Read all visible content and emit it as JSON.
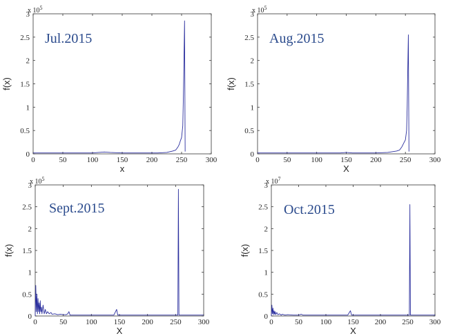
{
  "chart_data": [
    {
      "type": "line",
      "title": "Jul.2015",
      "xlabel": "x",
      "ylabel": "f(x)",
      "xlim": [
        0,
        300
      ],
      "ylim": [
        0,
        3
      ],
      "y_multiplier": "x 10",
      "y_exponent": "5",
      "x_ticks": [
        "0",
        "50",
        "100",
        "150",
        "200",
        "250",
        "300"
      ],
      "y_ticks": [
        "0",
        "0.5",
        "1",
        "1.5",
        "2",
        "2.5",
        "3"
      ],
      "series": [
        {
          "color": "#2b2f9e",
          "x": [
            0,
            20,
            40,
            60,
            80,
            100,
            110,
            120,
            130,
            150,
            170,
            190,
            210,
            225,
            235,
            240,
            244,
            246,
            248,
            250,
            252,
            253,
            254,
            255,
            256
          ],
          "y": [
            0.02,
            0.02,
            0.02,
            0.02,
            0.02,
            0.02,
            0.03,
            0.04,
            0.03,
            0.02,
            0.02,
            0.02,
            0.02,
            0.03,
            0.06,
            0.08,
            0.15,
            0.2,
            0.28,
            0.35,
            0.6,
            1.2,
            2.0,
            2.85,
            0.05
          ]
        }
      ]
    },
    {
      "type": "line",
      "title": "Aug.2015",
      "xlabel": "X",
      "ylabel": "f(x)",
      "xlim": [
        0,
        300
      ],
      "ylim": [
        0,
        3
      ],
      "y_multiplier": "x 10",
      "y_exponent": "5",
      "x_ticks": [
        "0",
        "50",
        "100",
        "150",
        "200",
        "250",
        "300"
      ],
      "y_ticks": [
        "0",
        "0.5",
        "1",
        "1.5",
        "2",
        "2.5",
        "3"
      ],
      "series": [
        {
          "color": "#2b2f9e",
          "x": [
            0,
            20,
            40,
            60,
            80,
            100,
            120,
            140,
            150,
            160,
            180,
            200,
            220,
            235,
            240,
            244,
            246,
            248,
            250,
            252,
            253,
            254,
            255,
            256
          ],
          "y": [
            0.02,
            0.02,
            0.02,
            0.02,
            0.02,
            0.02,
            0.02,
            0.02,
            0.03,
            0.02,
            0.02,
            0.02,
            0.03,
            0.06,
            0.08,
            0.15,
            0.2,
            0.25,
            0.3,
            0.5,
            1.0,
            1.8,
            2.55,
            0.05
          ]
        }
      ]
    },
    {
      "type": "line",
      "title": "Sept.2015",
      "xlabel": "X",
      "ylabel": "f(x)",
      "xlim": [
        0,
        300
      ],
      "ylim": [
        0,
        3
      ],
      "y_multiplier": "x 10",
      "y_exponent": "5",
      "x_ticks": [
        "0",
        "50",
        "100",
        "150",
        "200",
        "250",
        "300"
      ],
      "y_ticks": [
        "0",
        "0.5",
        "1",
        "1.5",
        "2",
        "2.5",
        "3"
      ],
      "series": [
        {
          "color": "#2b2f9e",
          "x": [
            0,
            1,
            2,
            3,
            4,
            5,
            6,
            7,
            8,
            9,
            10,
            11,
            12,
            14,
            16,
            18,
            20,
            22,
            25,
            28,
            30,
            35,
            40,
            45,
            50,
            55,
            58,
            60,
            62,
            70,
            80,
            90,
            100,
            110,
            120,
            130,
            140,
            145,
            147,
            150,
            160,
            180,
            200,
            220,
            240,
            250,
            252,
            253,
            254,
            255,
            256,
            258,
            270,
            300
          ],
          "y": [
            0.0,
            0.7,
            0.1,
            0.5,
            0.05,
            0.4,
            0.1,
            0.3,
            0.05,
            0.35,
            0.1,
            0.2,
            0.05,
            0.25,
            0.05,
            0.15,
            0.05,
            0.1,
            0.05,
            0.08,
            0.04,
            0.05,
            0.03,
            0.04,
            0.03,
            0.03,
            0.05,
            0.1,
            0.02,
            0.02,
            0.02,
            0.02,
            0.02,
            0.02,
            0.02,
            0.02,
            0.02,
            0.15,
            0.02,
            0.02,
            0.02,
            0.02,
            0.02,
            0.02,
            0.02,
            0.02,
            0.02,
            0.02,
            0.02,
            2.9,
            0.02,
            0.02,
            0.02,
            0.02
          ]
        }
      ]
    },
    {
      "type": "line",
      "title": "Oct.2015",
      "xlabel": "X",
      "ylabel": "f(x)",
      "xlim": [
        0,
        300
      ],
      "ylim": [
        0,
        3
      ],
      "y_multiplier": "x 10",
      "y_exponent": "7",
      "x_ticks": [
        "0",
        "50",
        "100",
        "150",
        "200",
        "250",
        "300"
      ],
      "y_ticks": [
        "0",
        "0.5",
        "1",
        "1.5",
        "2",
        "2.5",
        "3"
      ],
      "series": [
        {
          "color": "#2b2f9e",
          "x": [
            0,
            1,
            2,
            3,
            4,
            5,
            6,
            7,
            8,
            10,
            12,
            15,
            18,
            20,
            25,
            30,
            40,
            50,
            55,
            58,
            60,
            70,
            80,
            100,
            120,
            140,
            145,
            147,
            150,
            170,
            200,
            220,
            240,
            250,
            253,
            254,
            255,
            256,
            258,
            270,
            300
          ],
          "y": [
            0.0,
            0.25,
            0.05,
            0.18,
            0.03,
            0.12,
            0.04,
            0.1,
            0.03,
            0.08,
            0.03,
            0.05,
            0.02,
            0.04,
            0.02,
            0.03,
            0.02,
            0.02,
            0.04,
            0.02,
            0.02,
            0.02,
            0.02,
            0.02,
            0.02,
            0.02,
            0.12,
            0.02,
            0.02,
            0.02,
            0.02,
            0.02,
            0.02,
            0.02,
            0.02,
            2.55,
            0.02,
            0.02,
            0.02,
            0.02,
            0.02
          ]
        }
      ]
    }
  ]
}
